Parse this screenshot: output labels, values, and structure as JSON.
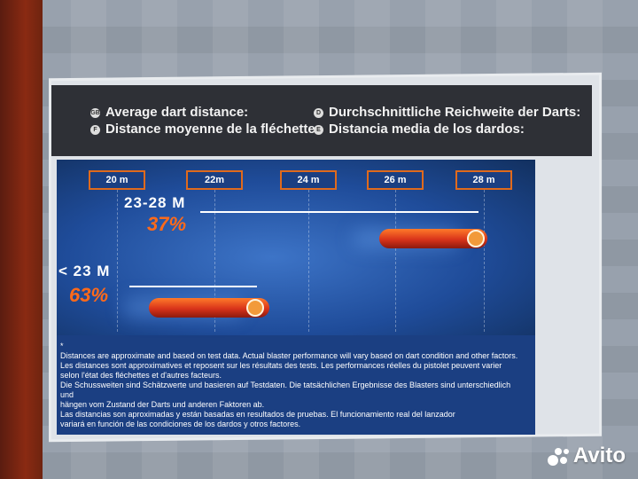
{
  "header": {
    "en": "Average dart distance:",
    "fr": "Distance moyenne de la fléchette :",
    "de": "Durchschnittliche Reichweite der Darts:",
    "es": "Distancia media de los dardos:"
  },
  "ticks": [
    "20 m",
    "22m",
    "24 m",
    "26 m",
    "28 m"
  ],
  "ranges": [
    {
      "label": "23-28 M",
      "percent": "37%"
    },
    {
      "label": "< 23 M",
      "percent": "63%"
    }
  ],
  "notes": {
    "star": "*",
    "en": "Distances are approximate and based on test data. Actual blaster performance will vary based on dart condition and other factors.",
    "fr1": "Les distances sont approximatives et reposent sur les résultats des tests. Les performances réelles du pistolet peuvent varier",
    "fr2": "selon l'état des fléchettes et d'autres facteurs.",
    "de1": "Die Schussweiten sind Schätzwerte und basieren auf Testdaten. Die tatsächlichen Ergebnisse des Blasters sind unterschiedlich und",
    "de2": "hängen vom Zustand der Darts und anderen Faktoren ab.",
    "es1": "Las distancias son aproximadas y están basadas en resultados de pruebas.  El funcionamiento real del lanzador",
    "es2": "variará en función de las condiciones de los dardos y otros factores."
  },
  "watermark": "Avito",
  "colors": {
    "accent": "#ff6a1a",
    "chart_bg": "#1f4c9a",
    "header_bg": "#2e3036"
  }
}
